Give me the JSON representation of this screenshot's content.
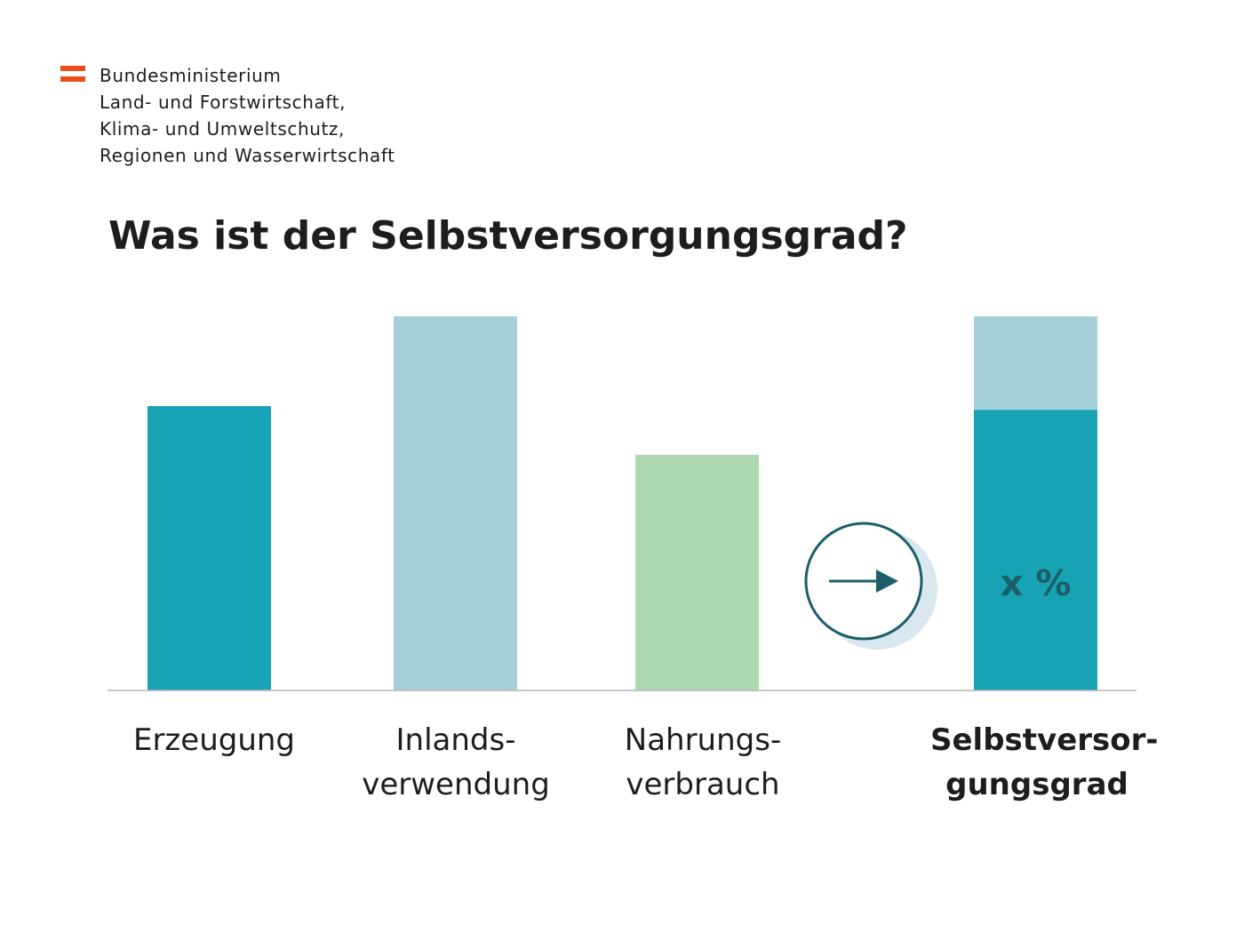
{
  "organization": {
    "lines": [
      "Bundesministerium",
      "Land- und Forstwirtschaft,",
      "Klima- und Umweltschutz,",
      "Regionen und Wasserwirtschaft"
    ],
    "flag_colors": [
      "#e94e1b",
      "#ffffff",
      "#e94e1b"
    ]
  },
  "title": "Was ist der Selbstversorgungsgrad?",
  "colors": {
    "teal": "#18a3b4",
    "light_blue": "#a6d0d9",
    "light_green": "#add8b0",
    "dark_teal": "#1d5e6b",
    "shadow": "#d9e7ee",
    "axis": "#b5b5b5"
  },
  "arrow_icon": "arrow-right-icon",
  "chart_data": {
    "type": "bar",
    "title": "Was ist der Selbstversorgungsgrad?",
    "categories": [
      "Erzeugung",
      "Inlandsverwendung",
      "Nahrungsverbrauch",
      "Selbstversorgungsgrad"
    ],
    "category_labels": [
      {
        "lines": [
          "Erzeugung"
        ],
        "bold": false
      },
      {
        "lines": [
          "Inlands-",
          "verwendung"
        ],
        "bold": false
      },
      {
        "lines": [
          "Nahrungs-",
          "verbrauch"
        ],
        "bold": false
      },
      {
        "lines": [
          "Selbstversor-",
          "gungsgrad"
        ],
        "bold": true
      }
    ],
    "values": [
      76,
      100,
      63,
      100
    ],
    "stacked_last_bar": {
      "inner_value": 75,
      "total": 100,
      "label": "x %"
    },
    "ylim": [
      0,
      100
    ],
    "grid": false,
    "xlabel": "",
    "ylabel": ""
  }
}
